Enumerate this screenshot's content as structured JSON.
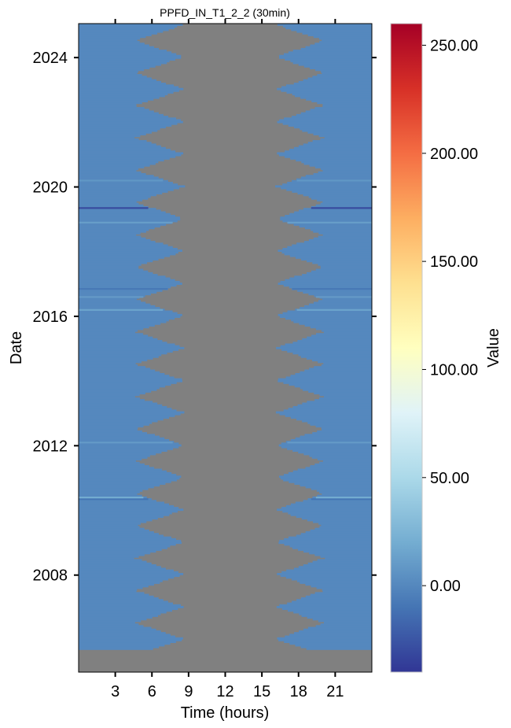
{
  "chart_data": {
    "type": "heatmap",
    "title": "PPFD_IN_T1_2_2 (30min)",
    "xlabel": "Time (hours)",
    "ylabel": "Date",
    "x_ticks": [
      3,
      6,
      9,
      12,
      15,
      18,
      21
    ],
    "x_range": [
      0,
      24
    ],
    "y_ticks": [
      {
        "label": "2008",
        "value": 2008
      },
      {
        "label": "2012",
        "value": 2012
      },
      {
        "label": "2016",
        "value": 2016
      },
      {
        "label": "2020",
        "value": 2020
      },
      {
        "label": "2024",
        "value": 2024
      }
    ],
    "y_range": [
      2005.0,
      2025.05
    ],
    "data_start": 2005.7,
    "missing_color": "#808080",
    "night_value": 0,
    "daytime_missing": {
      "summer_start_hour": 4.5,
      "winter_start_hour": 8.5,
      "summer_end_hour": 20.2,
      "winter_end_hour": 16.3
    },
    "notable_rows": [
      {
        "year": 2019.35,
        "value": -30
      },
      {
        "year": 2010.35,
        "value": -10
      },
      {
        "year": 2010.4,
        "value": 20
      },
      {
        "year": 2016.2,
        "value": 15
      },
      {
        "year": 2016.6,
        "value": 10
      },
      {
        "year": 2016.85,
        "value": -8
      },
      {
        "year": 2018.9,
        "value": 12
      },
      {
        "year": 2020.2,
        "value": 8
      },
      {
        "year": 2012.1,
        "value": 10
      }
    ],
    "colorbar": {
      "label": "Value",
      "min": -40,
      "max": 260,
      "ticks": [
        0,
        50,
        100,
        150,
        200,
        250
      ],
      "tick_labels": [
        "0.00",
        "50.00",
        "100.00",
        "150.00",
        "200.00",
        "250.00"
      ],
      "colormap": [
        "#313695",
        "#4575b4",
        "#74add1",
        "#abd9e9",
        "#e0f3f8",
        "#ffffbf",
        "#fee090",
        "#fdae61",
        "#f46d43",
        "#d73027",
        "#a50026"
      ]
    }
  }
}
